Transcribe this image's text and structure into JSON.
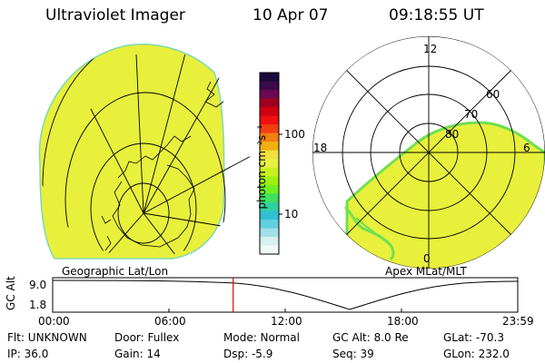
{
  "header": {
    "title": "Ultraviolet Imager",
    "date": "10 Apr 07",
    "time": "09:18:55 UT"
  },
  "left_panel": {
    "label": "Geographic Lat/Lon"
  },
  "colorbar": {
    "unit_label": "photon cm⁻²s⁻¹",
    "ticks": [
      "100",
      "10"
    ],
    "colors": [
      "#1a0a3a",
      "#3a0a4a",
      "#6a0a50",
      "#a00020",
      "#d00010",
      "#f01010",
      "#f04010",
      "#f08010",
      "#f0b010",
      "#f0e040",
      "#e8f040",
      "#c8f020",
      "#a0f010",
      "#70f020",
      "#40e060",
      "#30d0a0",
      "#30c0d0",
      "#60d0e0",
      "#a0e0e8",
      "#d8f0f0",
      "#f0f8f8"
    ]
  },
  "right_panel": {
    "label": "Apex MLat/MLT",
    "mlt_labels": [
      "12",
      "18",
      "6",
      "0"
    ],
    "mlat_labels": [
      "60",
      "70",
      "80"
    ]
  },
  "timeline": {
    "ylabel": "GC Alt",
    "yticks": [
      "9.0",
      "1.8"
    ],
    "xticks": [
      "00:00",
      "06:00",
      "12:00",
      "18:00",
      "23:59"
    ],
    "current_marker_hours": 9.315
  },
  "info": {
    "flt": "Flt: UNKNOWN",
    "door": "Door: Fullex",
    "mode": "Mode: Normal",
    "gc_alt": "GC Alt: 8.0 Re",
    "glat": "GLat: -70.3",
    "ip": "IP: 36.0",
    "gain": "Gain: 14",
    "dsp": "Dsp:    -5.9",
    "seq": "Seq: 39",
    "glon": "GLon: 232.0"
  },
  "colors": {
    "emission_yellow": "#e8f03c",
    "emission_green": "#70e050",
    "marker_red": "#e00000"
  }
}
